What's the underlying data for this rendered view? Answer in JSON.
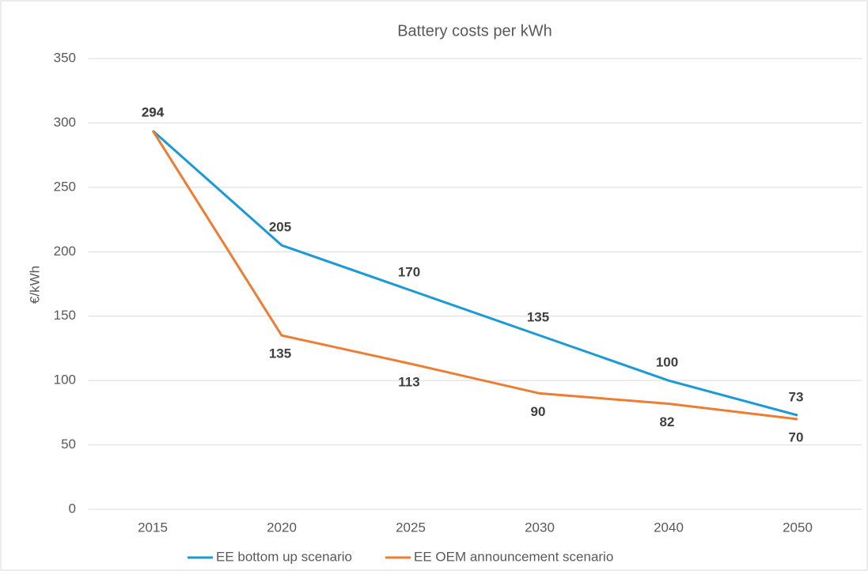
{
  "chart_data": {
    "type": "line",
    "title": "Battery costs per kWh",
    "y_label": "€/kWh",
    "categories": [
      "2015",
      "2020",
      "2025",
      "2030",
      "2040",
      "2050"
    ],
    "series": [
      {
        "name": "EE bottom up scenario",
        "color": "#1a9ad6",
        "values": [
          294,
          205,
          170,
          135,
          100,
          73
        ]
      },
      {
        "name": "EE OEM announcement scenario",
        "color": "#ed7d31",
        "values": [
          294,
          135,
          113,
          90,
          82,
          70
        ]
      }
    ],
    "ylim": [
      0,
      350
    ],
    "yticks": [
      0,
      50,
      100,
      150,
      200,
      250,
      300,
      350
    ],
    "grid": true,
    "legend": "bottom"
  }
}
